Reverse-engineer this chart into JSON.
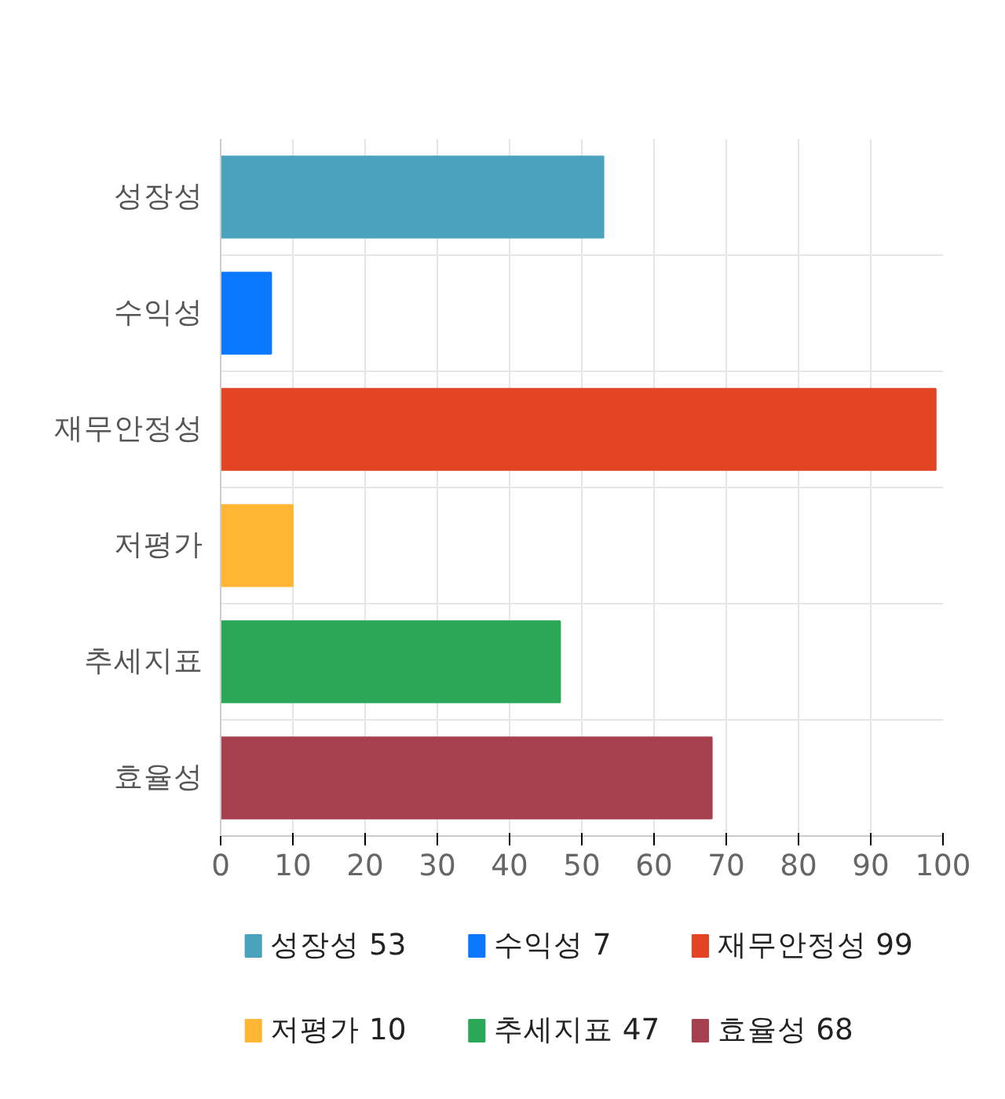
{
  "chart_data": {
    "type": "bar",
    "orientation": "horizontal",
    "categories": [
      "성장성",
      "수익성",
      "재무안정성",
      "저평가",
      "추세지표",
      "효율성"
    ],
    "series": [
      {
        "name": "성장성 53",
        "color": "#4aa3bc",
        "values": [
          53,
          null,
          null,
          null,
          null,
          null
        ]
      },
      {
        "name": "수익성 7",
        "color": "#0a77ff",
        "values": [
          null,
          7,
          null,
          null,
          null,
          null
        ]
      },
      {
        "name": "재무안정성 99",
        "color": "#e34424",
        "values": [
          null,
          null,
          99,
          null,
          null,
          null
        ]
      },
      {
        "name": "저평가 10",
        "color": "#ffb733",
        "values": [
          null,
          null,
          null,
          10,
          null,
          null
        ]
      },
      {
        "name": "추세지표 47",
        "color": "#2aa757",
        "values": [
          null,
          null,
          null,
          null,
          47,
          null
        ]
      },
      {
        "name": "효율성 68",
        "color": "#a6404f",
        "values": [
          null,
          null,
          null,
          null,
          null,
          68
        ]
      }
    ],
    "xlim": [
      0,
      100
    ],
    "xticks": [
      0,
      10,
      20,
      30,
      40,
      50,
      60,
      70,
      80,
      90,
      100
    ],
    "grid": true,
    "legend": "bottom"
  }
}
